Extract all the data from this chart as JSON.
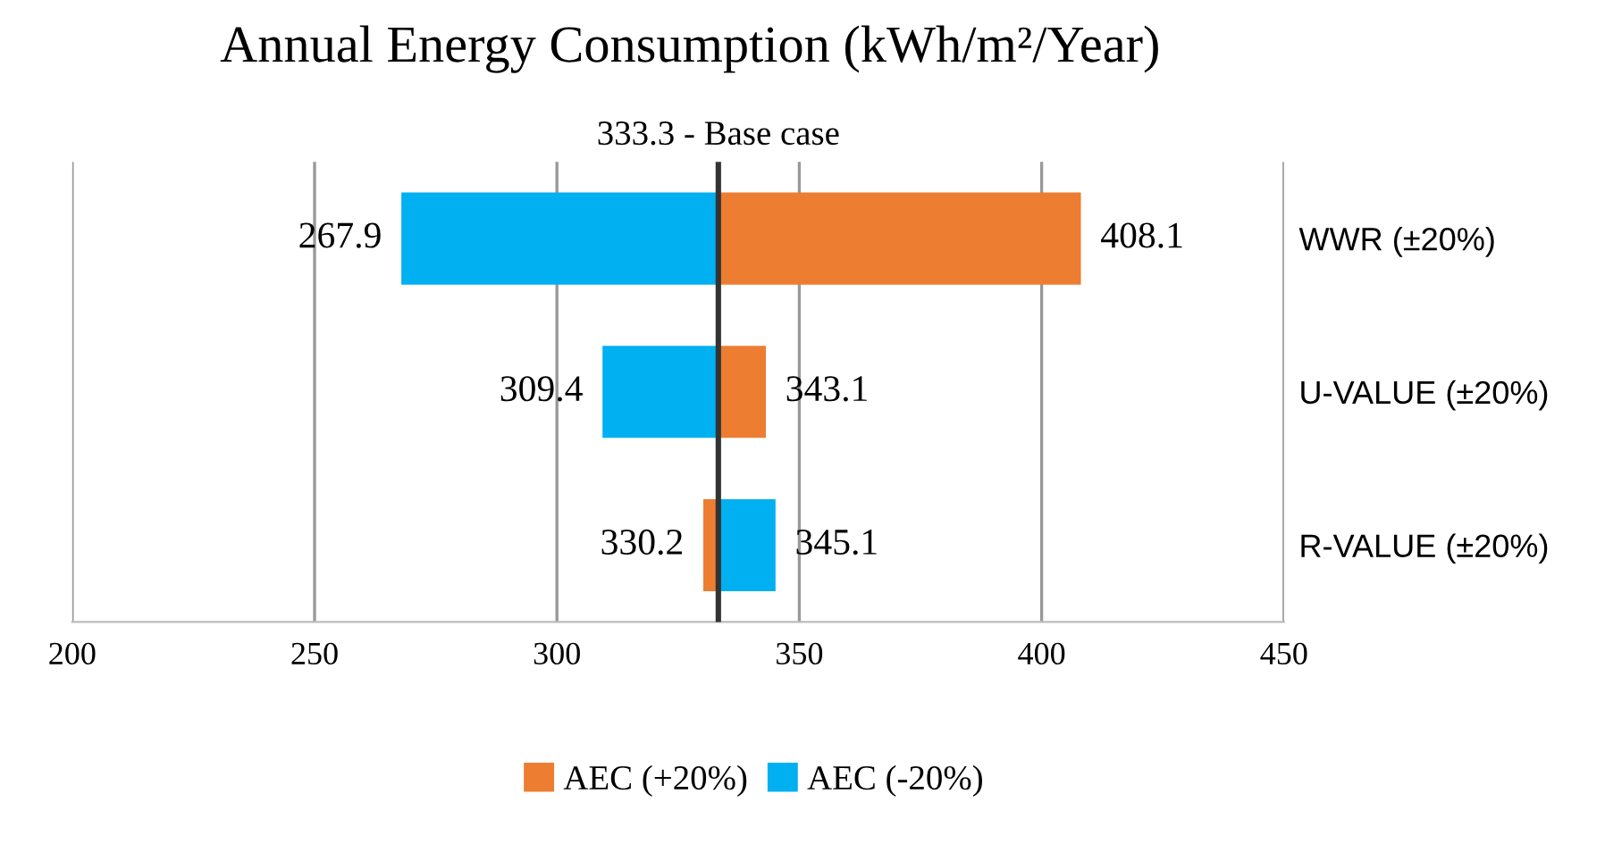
{
  "chart_data": {
    "type": "bar",
    "orientation": "horizontal",
    "title": "Annual Energy Consumption (kWh/m²/Year)",
    "categories": [
      "WWR (±20%)",
      "U-VALUE (±20%)",
      "R-VALUE (±20%)"
    ],
    "series": [
      {
        "name": "AEC (+20%)",
        "color": "#ed7d31",
        "base": [
          333.3,
          333.3,
          333.3
        ],
        "values": [
          74.8,
          9.8,
          -3.1
        ],
        "value_labels": [
          "408.1",
          "343.1",
          "330.2"
        ]
      },
      {
        "name": "AEC (-20%)",
        "color": "#00b0f0",
        "base": [
          333.3,
          333.3,
          333.3
        ],
        "values": [
          -65.4,
          -23.9,
          11.8
        ],
        "value_labels": [
          "267.9",
          "309.4",
          "345.1"
        ]
      }
    ],
    "xlim": [
      200,
      450
    ],
    "xticks": [
      200,
      250,
      300,
      350,
      400,
      450
    ],
    "ref_lines": [
      {
        "axis": "x",
        "value": 333.3,
        "label": "333.3 - Base case",
        "color": "#333333"
      }
    ],
    "grid": "x",
    "legend": "bottom"
  }
}
